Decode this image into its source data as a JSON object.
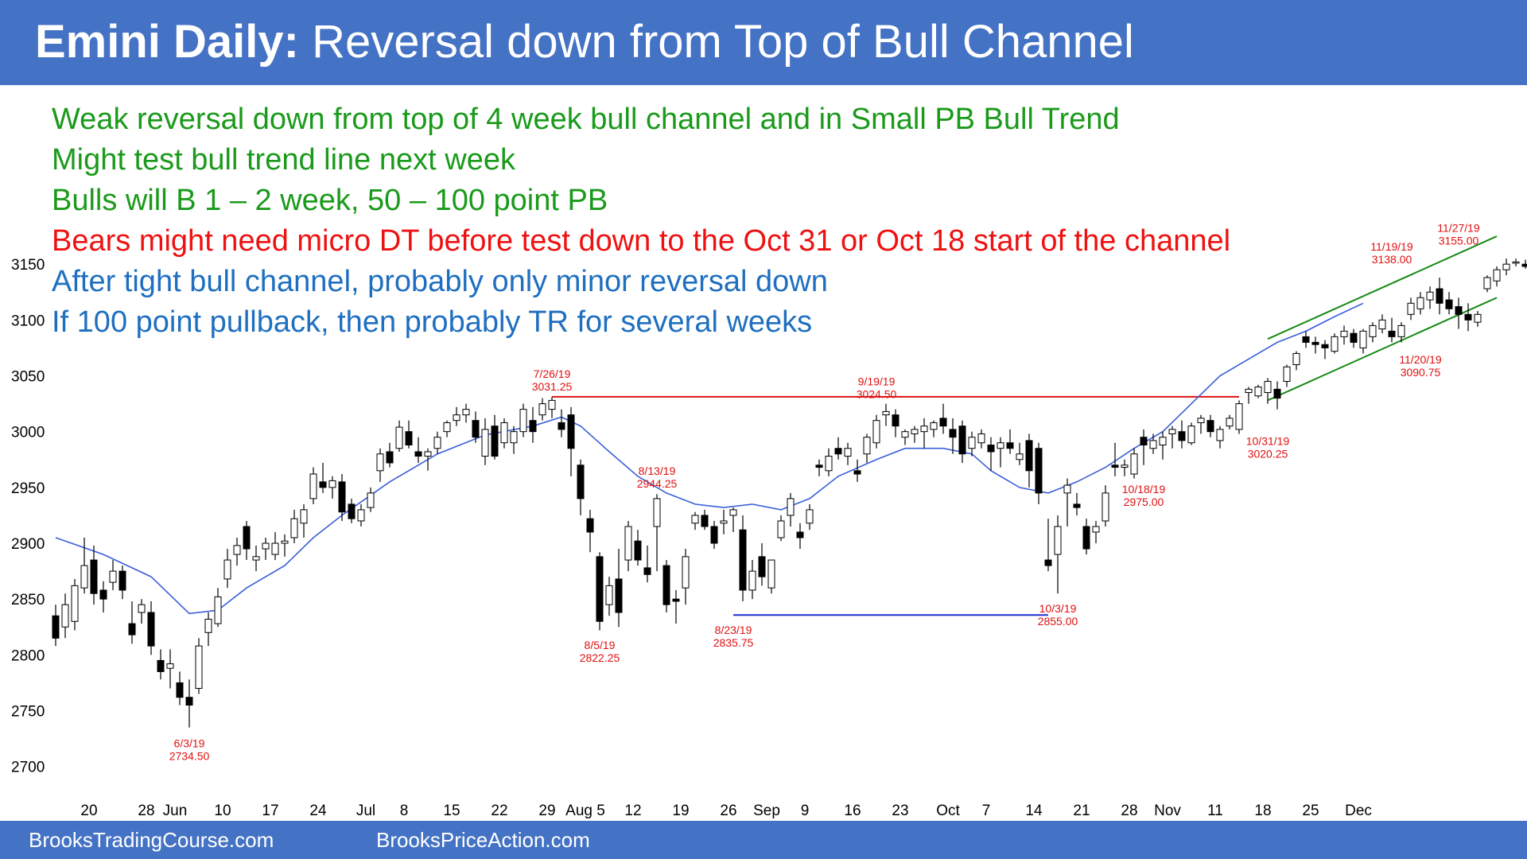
{
  "header": {
    "title_bold": "Emini Daily:",
    "title_rest": " Reversal down from Top of Bull Channel"
  },
  "notes": [
    {
      "text": "Weak reversal down from top of 4 week bull channel and in Small PB Bull Trend",
      "color": "#1a9a1a"
    },
    {
      "text": "Might test bull trend line next week",
      "color": "#1a9a1a"
    },
    {
      "text": "Bulls will B 1 – 2 week, 50 – 100 point PB",
      "color": "#1a9a1a"
    },
    {
      "text": "Bears might need micro DT before test down to the Oct 31 or Oct 18 start of the channel",
      "color": "#ee1111"
    },
    {
      "text": "After tight bull channel, probably only minor reversal down",
      "color": "#1f6fc0"
    },
    {
      "text": "If 100 point pullback, then probably TR for several weeks",
      "color": "#1f6fc0"
    }
  ],
  "footer": {
    "left": "BrooksTradingCourse.com",
    "right": "BrooksPriceAction.com"
  },
  "colors": {
    "header_bg": "#4472c4",
    "ema": "#3a5fd9",
    "resistance": "#e01010",
    "support": "#1a2ed0",
    "channel": "#148a14",
    "label": "#e01010"
  },
  "chart_data": {
    "type": "candlestick",
    "yticks": [
      3150,
      3100,
      3050,
      3000,
      2950,
      2900,
      2850,
      2800,
      2750,
      2700
    ],
    "ylim": [
      2690,
      3200
    ],
    "xticks": [
      "20",
      "28",
      "Jun",
      "10",
      "17",
      "24",
      "Jul",
      "8",
      "15",
      "22",
      "29",
      "Aug 5",
      "12",
      "19",
      "26",
      "Sep",
      "9",
      "16",
      "23",
      "Oct",
      "7",
      "14",
      "21",
      "28",
      "Nov",
      "11",
      "18",
      "25",
      "Dec"
    ],
    "xtick_bar_index": [
      3.5,
      9.5,
      12.5,
      17.5,
      22.5,
      27.5,
      32.5,
      36.5,
      41.5,
      46.5,
      51.5,
      55.5,
      60.5,
      65.5,
      70.5,
      74.5,
      78.5,
      83.5,
      88.5,
      93.5,
      97.5,
      102.5,
      107.5,
      112.5,
      116.5,
      121.5,
      126.5,
      131.5,
      136.5
    ],
    "candles": [
      [
        2835,
        2845,
        2808,
        2815
      ],
      [
        2825,
        2855,
        2815,
        2845
      ],
      [
        2830,
        2868,
        2822,
        2862
      ],
      [
        2860,
        2905,
        2855,
        2880
      ],
      [
        2885,
        2898,
        2845,
        2855
      ],
      [
        2858,
        2866,
        2838,
        2850
      ],
      [
        2865,
        2885,
        2858,
        2875
      ],
      [
        2875,
        2880,
        2850,
        2858
      ],
      [
        2828,
        2848,
        2810,
        2818
      ],
      [
        2838,
        2850,
        2828,
        2845
      ],
      [
        2838,
        2848,
        2800,
        2808
      ],
      [
        2795,
        2805,
        2778,
        2785
      ],
      [
        2788,
        2805,
        2770,
        2792
      ],
      [
        2775,
        2785,
        2755,
        2762
      ],
      [
        2762,
        2778,
        2735,
        2755
      ],
      [
        2770,
        2815,
        2765,
        2808
      ],
      [
        2820,
        2838,
        2808,
        2832
      ],
      [
        2828,
        2860,
        2825,
        2852
      ],
      [
        2868,
        2895,
        2860,
        2885
      ],
      [
        2890,
        2905,
        2880,
        2898
      ],
      [
        2915,
        2920,
        2885,
        2895
      ],
      [
        2885,
        2898,
        2875,
        2888
      ],
      [
        2895,
        2905,
        2885,
        2900
      ],
      [
        2890,
        2910,
        2885,
        2900
      ],
      [
        2900,
        2908,
        2888,
        2902
      ],
      [
        2905,
        2930,
        2900,
        2922
      ],
      [
        2918,
        2935,
        2905,
        2930
      ],
      [
        2940,
        2968,
        2935,
        2962
      ],
      [
        2955,
        2972,
        2945,
        2950
      ],
      [
        2950,
        2960,
        2940,
        2956
      ],
      [
        2955,
        2962,
        2920,
        2928
      ],
      [
        2935,
        2940,
        2918,
        2922
      ],
      [
        2920,
        2935,
        2915,
        2930
      ],
      [
        2932,
        2950,
        2928,
        2945
      ],
      [
        2965,
        2985,
        2955,
        2980
      ],
      [
        2982,
        2990,
        2968,
        2972
      ],
      [
        2985,
        3010,
        2982,
        3004
      ],
      [
        3000,
        3010,
        2985,
        2988
      ],
      [
        2982,
        2995,
        2972,
        2978
      ],
      [
        2978,
        2985,
        2965,
        2982
      ],
      [
        2985,
        3000,
        2980,
        2995
      ],
      [
        3000,
        3010,
        2995,
        3008
      ],
      [
        3010,
        3022,
        3005,
        3015
      ],
      [
        3015,
        3025,
        3008,
        3020
      ],
      [
        3010,
        3018,
        2990,
        2995
      ],
      [
        2978,
        3012,
        2970,
        3002
      ],
      [
        3005,
        3015,
        2975,
        2978
      ],
      [
        2990,
        3012,
        2985,
        3008
      ],
      [
        2990,
        3005,
        2980,
        3000
      ],
      [
        3000,
        3025,
        2995,
        3020
      ],
      [
        3010,
        3022,
        2990,
        3000
      ],
      [
        3015,
        3030,
        3010,
        3025
      ],
      [
        3020,
        3031,
        3012,
        3028
      ],
      [
        3008,
        3020,
        2995,
        3002
      ],
      [
        3015,
        3022,
        2960,
        2985
      ],
      [
        2970,
        2975,
        2925,
        2940
      ],
      [
        2922,
        2930,
        2892,
        2910
      ],
      [
        2888,
        2892,
        2822,
        2830
      ],
      [
        2845,
        2870,
        2835,
        2862
      ],
      [
        2868,
        2895,
        2825,
        2838
      ],
      [
        2885,
        2920,
        2875,
        2915
      ],
      [
        2902,
        2912,
        2880,
        2885
      ],
      [
        2878,
        2898,
        2865,
        2872
      ],
      [
        2915,
        2944,
        2875,
        2940
      ],
      [
        2880,
        2885,
        2838,
        2845
      ],
      [
        2850,
        2858,
        2828,
        2848
      ],
      [
        2860,
        2895,
        2845,
        2888
      ],
      [
        2918,
        2928,
        2912,
        2925
      ],
      [
        2925,
        2930,
        2912,
        2915
      ],
      [
        2915,
        2920,
        2895,
        2900
      ],
      [
        2918,
        2930,
        2908,
        2920
      ],
      [
        2925,
        2932,
        2910,
        2930
      ],
      [
        2912,
        2925,
        2848,
        2858
      ],
      [
        2858,
        2885,
        2850,
        2875
      ],
      [
        2888,
        2900,
        2862,
        2870
      ],
      [
        2860,
        2880,
        2855,
        2885
      ],
      [
        2905,
        2925,
        2902,
        2920
      ],
      [
        2925,
        2945,
        2915,
        2940
      ],
      [
        2910,
        2918,
        2895,
        2905
      ],
      [
        2918,
        2935,
        2912,
        2930
      ],
      [
        2970,
        2975,
        2960,
        2968
      ],
      [
        2965,
        2985,
        2960,
        2978
      ],
      [
        2985,
        2995,
        2975,
        2980
      ],
      [
        2978,
        2990,
        2970,
        2985
      ],
      [
        2965,
        2975,
        2955,
        2962
      ],
      [
        2980,
        2998,
        2972,
        2995
      ],
      [
        2990,
        3015,
        2985,
        3010
      ],
      [
        3015,
        3025,
        3005,
        3018
      ],
      [
        3015,
        3020,
        2995,
        3005
      ],
      [
        2995,
        3002,
        2988,
        3000
      ],
      [
        2998,
        3005,
        2990,
        3002
      ],
      [
        3000,
        3012,
        2985,
        3005
      ],
      [
        3002,
        3010,
        2995,
        3008
      ],
      [
        3012,
        3025,
        2998,
        3005
      ],
      [
        3002,
        3012,
        2980,
        2995
      ],
      [
        3005,
        3010,
        2972,
        2980
      ],
      [
        2985,
        3000,
        2978,
        2995
      ],
      [
        2990,
        3002,
        2985,
        2998
      ],
      [
        2988,
        2995,
        2965,
        2982
      ],
      [
        2985,
        2995,
        2968,
        2990
      ],
      [
        2990,
        3002,
        2980,
        2985
      ],
      [
        2975,
        2990,
        2970,
        2980
      ],
      [
        2992,
        2998,
        2950,
        2965
      ],
      [
        2985,
        2990,
        2935,
        2945
      ],
      [
        2885,
        2922,
        2875,
        2880
      ],
      [
        2890,
        2925,
        2855,
        2915
      ],
      [
        2945,
        2958,
        2915,
        2952
      ],
      [
        2935,
        2945,
        2925,
        2932
      ],
      [
        2915,
        2922,
        2890,
        2895
      ],
      [
        2910,
        2920,
        2900,
        2915
      ],
      [
        2920,
        2952,
        2915,
        2945
      ],
      [
        2970,
        2990,
        2960,
        2968
      ],
      [
        2968,
        2975,
        2960,
        2970
      ],
      [
        2962,
        2985,
        2958,
        2980
      ],
      [
        2995,
        3002,
        2970,
        2988
      ],
      [
        2985,
        2998,
        2980,
        2992
      ],
      [
        2988,
        3000,
        2975,
        2995
      ],
      [
        2998,
        3005,
        2985,
        3002
      ],
      [
        3000,
        3010,
        2985,
        2992
      ],
      [
        2990,
        3008,
        2988,
        3005
      ],
      [
        3008,
        3015,
        2998,
        3012
      ],
      [
        3010,
        3015,
        2995,
        3000
      ],
      [
        2992,
        3005,
        2985,
        3002
      ],
      [
        3005,
        3015,
        3002,
        3012
      ],
      [
        3002,
        3028,
        2998,
        3025
      ],
      [
        3035,
        3040,
        3025,
        3038
      ],
      [
        3032,
        3042,
        3030,
        3040
      ],
      [
        3035,
        3048,
        3025,
        3045
      ],
      [
        3038,
        3045,
        3020,
        3030
      ],
      [
        3045,
        3060,
        3040,
        3058
      ],
      [
        3060,
        3072,
        3055,
        3070
      ],
      [
        3085,
        3090,
        3075,
        3080
      ],
      [
        3080,
        3085,
        3070,
        3078
      ],
      [
        3078,
        3082,
        3065,
        3075
      ],
      [
        3072,
        3088,
        3070,
        3085
      ],
      [
        3085,
        3095,
        3078,
        3090
      ],
      [
        3088,
        3092,
        3075,
        3080
      ],
      [
        3075,
        3092,
        3070,
        3090
      ],
      [
        3085,
        3098,
        3080,
        3095
      ],
      [
        3092,
        3105,
        3088,
        3100
      ],
      [
        3090,
        3102,
        3080,
        3085
      ],
      [
        3085,
        3098,
        3080,
        3095
      ],
      [
        3105,
        3120,
        3100,
        3115
      ],
      [
        3110,
        3125,
        3105,
        3120
      ],
      [
        3118,
        3130,
        3110,
        3125
      ],
      [
        3128,
        3138,
        3105,
        3115
      ],
      [
        3118,
        3125,
        3105,
        3110
      ],
      [
        3112,
        3120,
        3092,
        3105
      ],
      [
        3105,
        3115,
        3090,
        3100
      ],
      [
        3098,
        3108,
        3094,
        3105
      ],
      [
        3128,
        3140,
        3125,
        3138
      ],
      [
        3135,
        3148,
        3130,
        3145
      ],
      [
        3145,
        3155,
        3140,
        3150
      ],
      [
        3152,
        3155,
        3148,
        3152
      ],
      [
        3150,
        3154,
        3146,
        3148
      ],
      [
        3148,
        3150,
        3140,
        3144
      ]
    ],
    "ema": [
      [
        0,
        2905
      ],
      [
        5,
        2890
      ],
      [
        10,
        2870
      ],
      [
        14,
        2837
      ],
      [
        17,
        2840
      ],
      [
        20,
        2860
      ],
      [
        24,
        2880
      ],
      [
        27,
        2905
      ],
      [
        30,
        2925
      ],
      [
        35,
        2955
      ],
      [
        40,
        2980
      ],
      [
        45,
        2997
      ],
      [
        50,
        3005
      ],
      [
        53,
        3013
      ],
      [
        55,
        3005
      ],
      [
        58,
        2982
      ],
      [
        61,
        2960
      ],
      [
        64,
        2945
      ],
      [
        67,
        2935
      ],
      [
        70,
        2932
      ],
      [
        73,
        2935
      ],
      [
        76,
        2930
      ],
      [
        79,
        2940
      ],
      [
        82,
        2960
      ],
      [
        86,
        2975
      ],
      [
        89,
        2985
      ],
      [
        93,
        2985
      ],
      [
        96,
        2980
      ],
      [
        98,
        2965
      ],
      [
        101,
        2950
      ],
      [
        104,
        2945
      ],
      [
        107,
        2955
      ],
      [
        110,
        2968
      ],
      [
        113,
        2985
      ],
      [
        116,
        3000
      ],
      [
        119,
        3025
      ],
      [
        122,
        3050
      ],
      [
        125,
        3065
      ],
      [
        128,
        3080
      ],
      [
        131,
        3090
      ],
      [
        134,
        3103
      ],
      [
        137,
        3115
      ]
    ],
    "resistance_line": {
      "from_bar": 52,
      "to_bar": 124,
      "price": 3031.25
    },
    "support_line": {
      "from_bar": 71,
      "to_bar": 104,
      "price": 2835.75
    },
    "channel_upper": [
      [
        127,
        3083
      ],
      [
        151,
        3175
      ]
    ],
    "channel_lower": [
      [
        127,
        3028
      ],
      [
        151,
        3120
      ]
    ],
    "annotations": [
      {
        "bar": 14,
        "price": 2734.5,
        "pos": "below",
        "lines": [
          "6/3/19",
          "2734.50"
        ]
      },
      {
        "bar": 52,
        "price": 3031.25,
        "pos": "above",
        "lines": [
          "7/26/19",
          "3031.25"
        ]
      },
      {
        "bar": 57,
        "price": 2822.25,
        "pos": "below",
        "lines": [
          "8/5/19",
          "2822.25"
        ]
      },
      {
        "bar": 63,
        "price": 2944.25,
        "pos": "above",
        "lines": [
          "8/13/19",
          "2944.25"
        ]
      },
      {
        "bar": 71,
        "price": 2835.75,
        "pos": "below",
        "lines": [
          "8/23/19",
          "2835.75"
        ]
      },
      {
        "bar": 86,
        "price": 3024.5,
        "pos": "above",
        "lines": [
          "9/19/19",
          "3024.50"
        ]
      },
      {
        "bar": 105,
        "price": 2855.0,
        "pos": "below",
        "lines": [
          "10/3/19",
          "2855.00"
        ]
      },
      {
        "bar": 114,
        "price": 2962.0,
        "pos": "below",
        "lines": [
          "10/18/19",
          "2975.00"
        ]
      },
      {
        "bar": 127,
        "price": 3005.0,
        "pos": "below",
        "lines": [
          "10/31/19",
          "3020.25"
        ]
      },
      {
        "bar": 140,
        "price": 3145.0,
        "pos": "above",
        "lines": [
          "11/19/19",
          "3138.00"
        ]
      },
      {
        "bar": 143,
        "price": 3078.0,
        "pos": "below",
        "lines": [
          "11/20/19",
          "3090.75"
        ]
      },
      {
        "bar": 147,
        "price": 3162.0,
        "pos": "above",
        "lines": [
          "11/27/19",
          "3155.00"
        ]
      }
    ]
  }
}
